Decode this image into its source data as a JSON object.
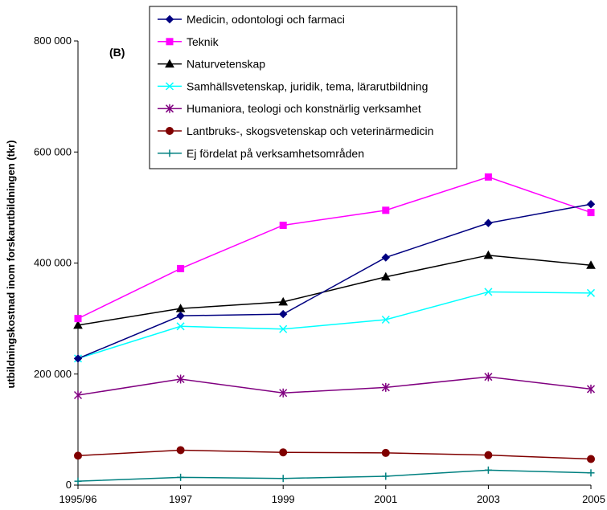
{
  "chart_data": {
    "type": "line",
    "panel_label": "(B)",
    "ylabel": "utbildningskostnad inom forskarutbildningen (tkr)",
    "xlabel": "",
    "categories": [
      "1995/96",
      "1997",
      "1999",
      "2001",
      "2003",
      "2005"
    ],
    "ylim": [
      0,
      800000
    ],
    "yticks": [
      0,
      200000,
      400000,
      600000,
      800000
    ],
    "ytick_labels": [
      "0",
      "200 000",
      "400 000",
      "600 000",
      "800 000"
    ],
    "grid": false,
    "legend_position": "top-right",
    "series": [
      {
        "name": "Medicin, odontologi och farmaci",
        "color": "#000080",
        "marker": "diamond",
        "values": [
          228000,
          305000,
          308000,
          410000,
          472000,
          506000
        ]
      },
      {
        "name": "Teknik",
        "color": "#FF00FF",
        "marker": "square",
        "values": [
          300000,
          390000,
          468000,
          495000,
          555000,
          491000
        ]
      },
      {
        "name": "Naturvetenskap",
        "color": "#000000",
        "marker": "triangle",
        "values": [
          288000,
          318000,
          330000,
          375000,
          414000,
          396000
        ]
      },
      {
        "name": "Samhällsvetenskap, juridik, tema, lärarutbildning",
        "color": "#00FFFF",
        "marker": "x",
        "values": [
          228000,
          286000,
          281000,
          298000,
          348000,
          346000
        ]
      },
      {
        "name": "Humaniora, teologi och konstnärlig verksamhet",
        "color": "#800080",
        "marker": "star",
        "values": [
          162000,
          191000,
          166000,
          176000,
          195000,
          173000
        ]
      },
      {
        "name": "Lantbruks-, skogsvetenskap och veterinärmedicin",
        "color": "#800000",
        "marker": "circle",
        "values": [
          53000,
          63000,
          59000,
          58000,
          54000,
          47000
        ]
      },
      {
        "name": "Ej fördelat på verksamhetsområden",
        "color": "#008080",
        "marker": "plus",
        "values": [
          7000,
          14000,
          12000,
          16000,
          27000,
          22000
        ]
      }
    ]
  }
}
